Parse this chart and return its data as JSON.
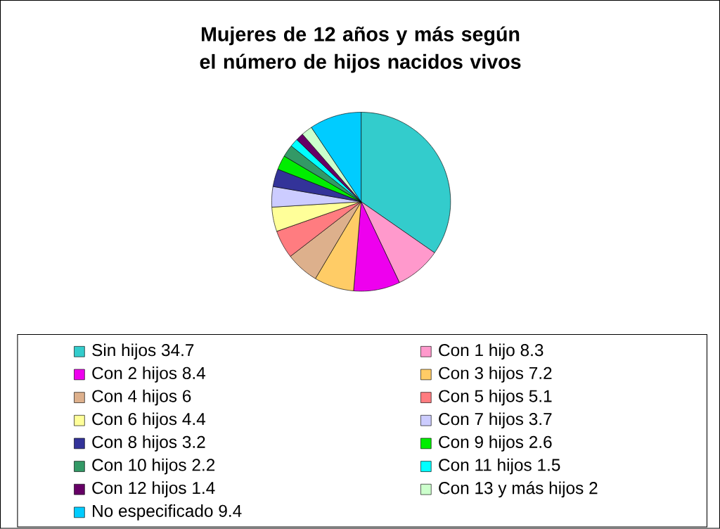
{
  "chart_data": {
    "type": "pie",
    "title": "Mujeres de 12 años y más según el número de hijos nacidos vivos",
    "categories": [
      "Sin hijos",
      "Con 1 hijo",
      "Con 2 hijos",
      "Con 3 hijos",
      "Con 4 hijos",
      "Con 5 hijos",
      "Con 6 hijos",
      "Con 7 hijos",
      "Con 8 hijos",
      "Con 9 hijos",
      "Con 10 hijos",
      "Con 11 hijos",
      "Con 12 hijos",
      "Con 13 y más hijos",
      "No especificado"
    ],
    "values": [
      34.7,
      8.3,
      8.4,
      7.2,
      6,
      5.1,
      4.4,
      3.7,
      3.2,
      2.6,
      2.2,
      1.5,
      1.4,
      2,
      9.4
    ],
    "colors": [
      "#33cccc",
      "#ff99cc",
      "#ee00ee",
      "#ffcc66",
      "#ddb08c",
      "#ff7c80",
      "#ffff99",
      "#ccccff",
      "#333399",
      "#00ee00",
      "#339966",
      "#00ffff",
      "#660066",
      "#ccffcc",
      "#00ccff"
    ],
    "data_labels": true,
    "legend": "bottom"
  }
}
